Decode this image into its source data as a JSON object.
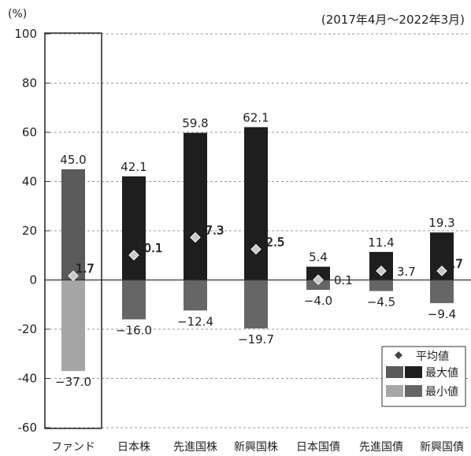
{
  "chart_data": {
    "type": "bar",
    "subtype": "range-bar",
    "yunit": "(%)",
    "period": "(2017年4月～2022年3月)",
    "ylim": [
      -60,
      100
    ],
    "yticks": [
      100,
      80,
      60,
      40,
      20,
      0,
      -20,
      -40,
      -60
    ],
    "grid": true,
    "legend_position": "bottom-right",
    "categories": [
      "ファンド",
      "日本株",
      "先進国株",
      "新興国株",
      "日本国債",
      "先進国債",
      "新興国債"
    ],
    "series": [
      {
        "name": "平均値",
        "values": [
          1.7,
          10.1,
          17.3,
          12.5,
          0.1,
          3.7,
          3.7
        ]
      },
      {
        "name": "最大値",
        "values": [
          45.0,
          42.1,
          59.8,
          62.1,
          5.4,
          11.4,
          19.3
        ]
      },
      {
        "name": "最小値",
        "values": [
          -37.0,
          -16.0,
          -12.4,
          -19.7,
          -4.0,
          -4.5,
          -9.4
        ]
      }
    ],
    "data_labels": {
      "avg": [
        "1.7",
        "10.1",
        "17.3",
        "12.5",
        "0.1",
        "3.7",
        "3.7"
      ],
      "max": [
        "45.0",
        "42.1",
        "59.8",
        "62.1",
        "5.4",
        "11.4",
        "19.3"
      ],
      "min": [
        "−37.0",
        "−16.0",
        "−12.4",
        "−19.7",
        "−4.0",
        "−4.5",
        "−9.4"
      ]
    },
    "highlighted_category": "ファンド",
    "colors": {
      "fund_max": "#5a5a5a",
      "fund_min": "#a6a6a6",
      "other_max": "#1e1e1e",
      "other_min": "#666666",
      "avg_marker": "#c8c8c8",
      "grid": "#999999",
      "axis": "#333333"
    }
  },
  "legend": {
    "avg_label": "平均値",
    "max_label": "最大値",
    "min_label": "最小値"
  }
}
